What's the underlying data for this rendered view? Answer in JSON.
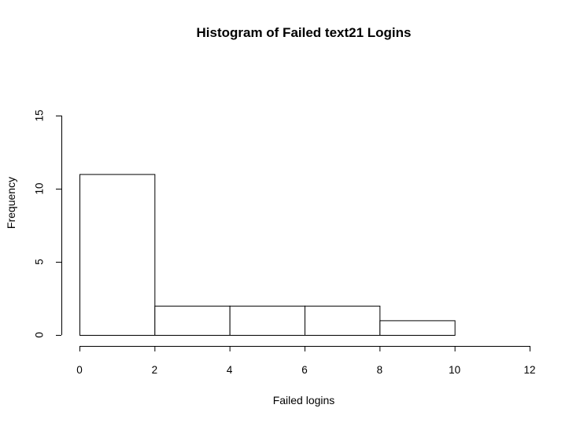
{
  "chart_data": {
    "type": "bar",
    "subtype": "histogram",
    "title": "Histogram of Failed text21 Logins",
    "xlabel": "Failed logins",
    "ylabel": "Frequency",
    "bins": [
      {
        "start": 0,
        "end": 2,
        "count": 11
      },
      {
        "start": 2,
        "end": 4,
        "count": 2
      },
      {
        "start": 4,
        "end": 6,
        "count": 2
      },
      {
        "start": 6,
        "end": 8,
        "count": 2
      },
      {
        "start": 8,
        "end": 10,
        "count": 1
      }
    ],
    "xlim": [
      0,
      12
    ],
    "ylim": [
      0,
      15
    ],
    "x_ticks": [
      "0",
      "2",
      "4",
      "6",
      "8",
      "10",
      "12"
    ],
    "y_ticks": [
      "0",
      "5",
      "10",
      "15"
    ],
    "grid": false,
    "legend": "none",
    "colors": {
      "bar_fill": "#ffffff",
      "bar_stroke": "#000000"
    }
  }
}
